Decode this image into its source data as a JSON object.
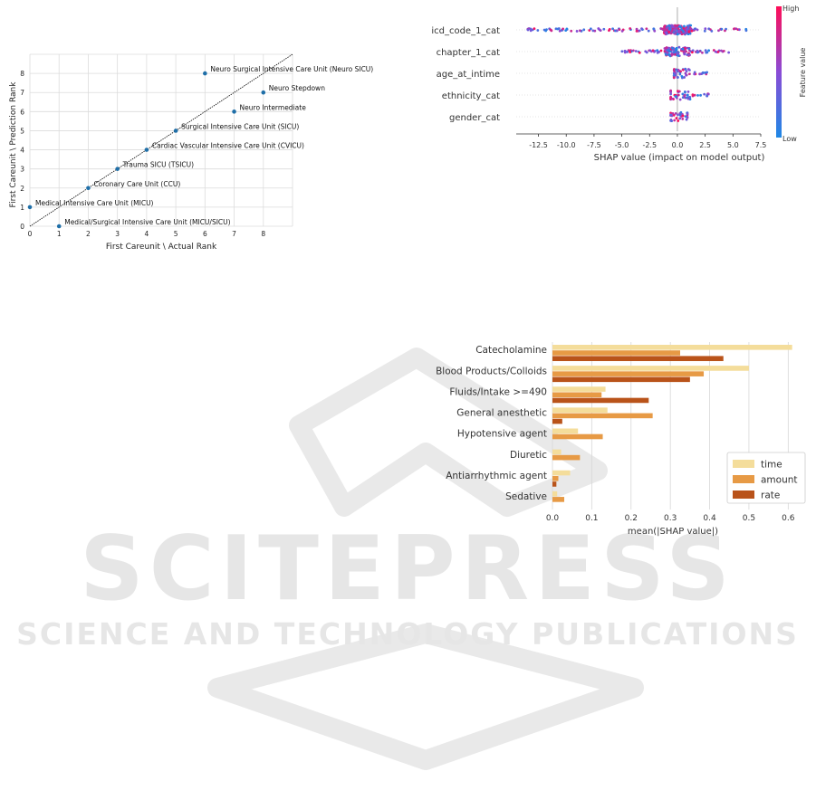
{
  "watermark": {
    "line1": "SCITEPRESS",
    "line2": "SCIENCE AND TECHNOLOGY PUBLICATIONS",
    "color": "#e6e6e6"
  },
  "chart_data": [
    {
      "type": "scatter",
      "xlabel": "First Careunit \\ Actual Rank",
      "ylabel": "First Careunit \\ Prediction Rank",
      "xlim": [
        0,
        9
      ],
      "ylim": [
        0,
        9
      ],
      "xticks": [
        0,
        1,
        2,
        3,
        4,
        5,
        6,
        7,
        8
      ],
      "yticks": [
        0,
        1,
        2,
        3,
        4,
        5,
        6,
        7,
        8
      ],
      "grid": true,
      "diagonal": true,
      "point_color": "#1f6fa8",
      "points": [
        {
          "x": 0,
          "y": 1,
          "label": "Medical Intensive Care Unit (MICU)"
        },
        {
          "x": 1,
          "y": 0,
          "label": "Medical/Surgical Intensive Care Unit (MICU/SICU)"
        },
        {
          "x": 2,
          "y": 2,
          "label": "Coronary Care Unit (CCU)"
        },
        {
          "x": 3,
          "y": 3,
          "label": "Trauma SICU (TSICU)"
        },
        {
          "x": 4,
          "y": 4,
          "label": "Cardiac Vascular Intensive Care Unit (CVICU)"
        },
        {
          "x": 5,
          "y": 5,
          "label": "Surgical Intensive Care Unit (SICU)"
        },
        {
          "x": 6,
          "y": 8,
          "label": "Neuro Surgical Intensive Care Unit (Neuro SICU)"
        },
        {
          "x": 7,
          "y": 6,
          "label": "Neuro Intermediate"
        },
        {
          "x": 8,
          "y": 7,
          "label": "Neuro Stepdown"
        }
      ]
    },
    {
      "type": "scatter",
      "subtype": "shap-beeswarm",
      "xlabel": "SHAP value (impact on model output)",
      "features": [
        "icd_code_1_cat",
        "chapter_1_cat",
        "age_at_intime",
        "ethnicity_cat",
        "gender_cat"
      ],
      "xlim": [
        -14.5,
        7.5
      ],
      "xticks": [
        -12.5,
        -10.0,
        -7.5,
        -5.0,
        -2.5,
        0.0,
        2.5,
        5.0,
        7.5
      ],
      "colorbar": {
        "label": "Feature value",
        "high": "High",
        "low": "Low",
        "high_color": "#ff0d57",
        "low_color": "#1e88e5"
      },
      "feature_ranges": [
        {
          "feature": "icd_code_1_cat",
          "min": -13.5,
          "max": 6.5
        },
        {
          "feature": "chapter_1_cat",
          "min": -5.0,
          "max": 4.7
        },
        {
          "feature": "age_at_intime",
          "min": -0.3,
          "max": 3.2
        },
        {
          "feature": "ethnicity_cat",
          "min": -0.6,
          "max": 2.8
        },
        {
          "feature": "gender_cat",
          "min": -0.6,
          "max": 0.9
        }
      ]
    },
    {
      "type": "bar",
      "orientation": "horizontal",
      "xlabel": "mean(|SHAP value|)",
      "categories": [
        "Catecholamine",
        "Blood Products/Colloids",
        "Fluids/Intake >=490",
        "General anesthetic",
        "Hypotensive agent",
        "Diuretic",
        "Antiarrhythmic agent",
        "Sedative"
      ],
      "series": [
        {
          "name": "time",
          "color": "#f4dd9b",
          "values": [
            0.61,
            0.5,
            0.135,
            0.14,
            0.065,
            0.022,
            0.045,
            0.012
          ]
        },
        {
          "name": "amount",
          "color": "#e79a45",
          "values": [
            0.325,
            0.385,
            0.125,
            0.255,
            0.128,
            0.07,
            0.015,
            0.03
          ]
        },
        {
          "name": "rate",
          "color": "#b9531a",
          "values": [
            0.435,
            0.35,
            0.245,
            0.025,
            0.0,
            0.0,
            0.01,
            0.0
          ]
        }
      ],
      "xlim": [
        0,
        0.62
      ],
      "xticks": [
        0.0,
        0.1,
        0.2,
        0.3,
        0.4,
        0.5,
        0.6
      ],
      "legend_position": "lower-right"
    }
  ]
}
